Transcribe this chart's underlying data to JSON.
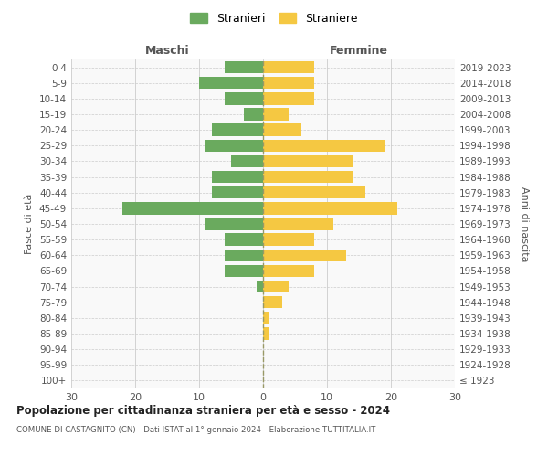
{
  "age_groups": [
    "100+",
    "95-99",
    "90-94",
    "85-89",
    "80-84",
    "75-79",
    "70-74",
    "65-69",
    "60-64",
    "55-59",
    "50-54",
    "45-49",
    "40-44",
    "35-39",
    "30-34",
    "25-29",
    "20-24",
    "15-19",
    "10-14",
    "5-9",
    "0-4"
  ],
  "birth_years": [
    "≤ 1923",
    "1924-1928",
    "1929-1933",
    "1934-1938",
    "1939-1943",
    "1944-1948",
    "1949-1953",
    "1954-1958",
    "1959-1963",
    "1964-1968",
    "1969-1973",
    "1974-1978",
    "1979-1983",
    "1984-1988",
    "1989-1993",
    "1994-1998",
    "1999-2003",
    "2004-2008",
    "2009-2013",
    "2014-2018",
    "2019-2023"
  ],
  "maschi": [
    0,
    0,
    0,
    0,
    0,
    0,
    1,
    6,
    6,
    6,
    9,
    22,
    8,
    8,
    5,
    9,
    8,
    3,
    6,
    10,
    6
  ],
  "femmine": [
    0,
    0,
    0,
    1,
    1,
    3,
    4,
    8,
    13,
    8,
    11,
    21,
    16,
    14,
    14,
    19,
    6,
    4,
    8,
    8,
    8
  ],
  "male_color": "#6aaa5e",
  "female_color": "#f5c842",
  "grid_color": "#cccccc",
  "center_line_color": "#999966",
  "xlim": 30,
  "title": "Popolazione per cittadinanza straniera per età e sesso - 2024",
  "subtitle": "COMUNE DI CASTAGNITO (CN) - Dati ISTAT al 1° gennaio 2024 - Elaborazione TUTTITALIA.IT",
  "ylabel_left": "Fasce di età",
  "ylabel_right": "Anni di nascita",
  "legend_maschi": "Stranieri",
  "legend_femmine": "Straniere",
  "maschi_label": "Maschi",
  "femmine_label": "Femmine",
  "bg_color": "#f9f9f9"
}
